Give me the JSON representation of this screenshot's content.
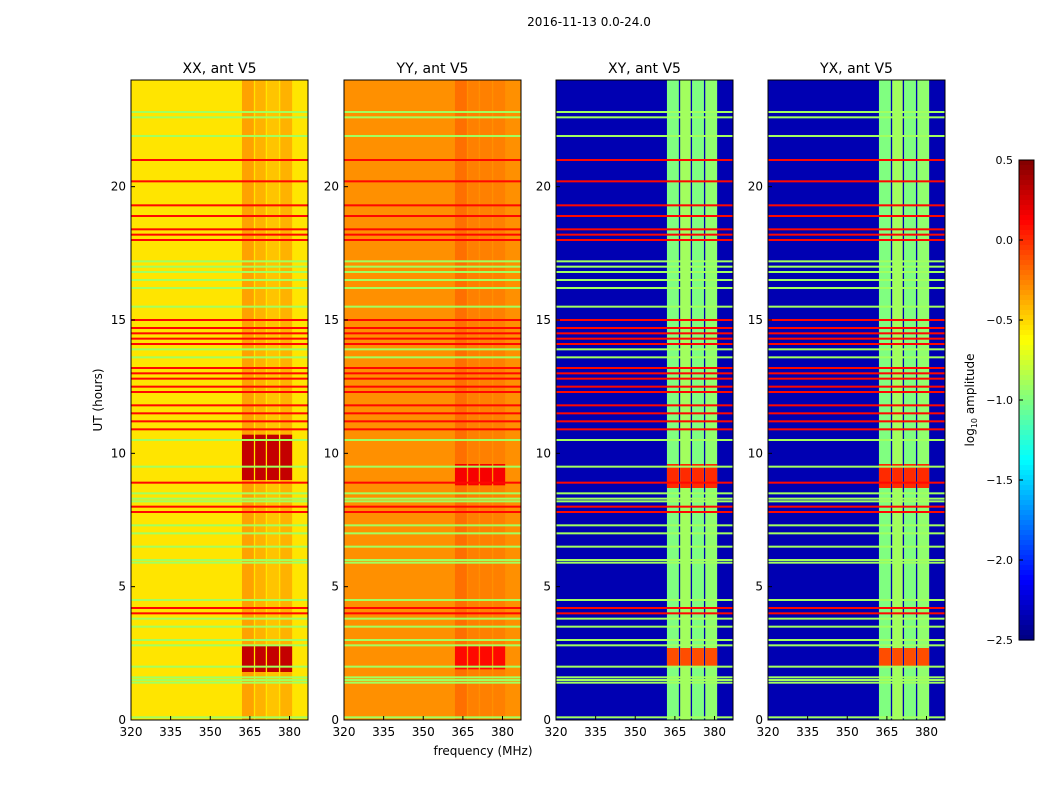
{
  "chart_data": {
    "type": "heatmap",
    "title": "2016-11-13 0.0-24.0",
    "xlabel": "frequency (MHz)",
    "ylabel": "UT (hours)",
    "xlim": [
      320,
      387
    ],
    "ylim": [
      0,
      24
    ],
    "xticks": [
      320,
      335,
      350,
      365,
      380
    ],
    "yticks": [
      0,
      5,
      10,
      15,
      20
    ],
    "colorbar": {
      "label": "log10 amplitude",
      "label_main": "log",
      "label_sub": "10",
      "label_rest": " amplitude",
      "colormap": "jet",
      "range": [
        -2.5,
        0.5
      ],
      "ticks": [
        "0.5",
        "0.0",
        "−0.5",
        "−1.0",
        "−1.5",
        "−2.0",
        "−2.5"
      ],
      "tick_values": [
        0.5,
        0.0,
        -0.5,
        -1.0,
        -1.5,
        -2.0,
        -2.5
      ]
    },
    "flag_lines_high": [
      21.0,
      20.2,
      19.3,
      18.9,
      18.4,
      18.2,
      18.0,
      15.0,
      14.7,
      14.5,
      14.3,
      14.1,
      13.2,
      13.0,
      12.8,
      12.5,
      12.3,
      11.8,
      11.5,
      11.2,
      10.9,
      8.9,
      8.0,
      7.8,
      4.2,
      4.0
    ],
    "high_level": 0.1,
    "flag_lines_mid": [
      22.8,
      22.6,
      21.9,
      17.2,
      17.0,
      16.8,
      16.5,
      16.2,
      15.5,
      13.9,
      13.6,
      10.5,
      9.5,
      8.5,
      8.3,
      8.2,
      7.3,
      7.0,
      6.5,
      6.0,
      5.9,
      4.5,
      3.8,
      3.5,
      3.0,
      2.8,
      2.0,
      1.6,
      1.5,
      1.4,
      0.1
    ],
    "mid_level": -0.9,
    "panels": [
      {
        "title": "XX, ant V5",
        "base": -0.55,
        "bands": [
          [
            362,
            366.5,
            -0.35
          ],
          [
            367,
            371,
            -0.4
          ],
          [
            371.5,
            376,
            -0.45
          ],
          [
            376.5,
            381,
            -0.4
          ]
        ],
        "hot": [
          [
            362,
            381,
            9.0,
            10.7,
            0.3
          ],
          [
            362,
            381,
            1.8,
            2.8,
            0.3
          ]
        ]
      },
      {
        "title": "YY, ant V5",
        "base": -0.3,
        "bands": [
          [
            362,
            366.5,
            -0.2
          ],
          [
            367,
            371,
            -0.25
          ],
          [
            371.5,
            376,
            -0.25
          ],
          [
            376.5,
            381,
            -0.25
          ]
        ],
        "hot": [
          [
            362,
            381,
            8.8,
            9.6,
            0.15
          ],
          [
            362,
            381,
            1.9,
            2.8,
            0.1
          ]
        ]
      },
      {
        "title": "XY, ant V5",
        "base": -2.35,
        "bands": [
          [
            362,
            366.5,
            -1.0
          ],
          [
            367,
            371,
            -0.9
          ],
          [
            371.5,
            376,
            -1.0
          ],
          [
            376.5,
            381,
            -0.95
          ]
        ],
        "hot": [
          [
            362,
            381,
            8.7,
            9.6,
            0.0
          ],
          [
            362,
            381,
            2.0,
            2.7,
            -0.1
          ]
        ]
      },
      {
        "title": "YX, ant V5",
        "base": -2.35,
        "bands": [
          [
            362,
            366.5,
            -1.0
          ],
          [
            367,
            371,
            -0.9
          ],
          [
            371.5,
            376,
            -1.0
          ],
          [
            376.5,
            381,
            -0.95
          ]
        ],
        "hot": [
          [
            362,
            381,
            8.7,
            9.6,
            0.0
          ],
          [
            362,
            381,
            2.0,
            2.7,
            -0.1
          ]
        ]
      }
    ]
  }
}
